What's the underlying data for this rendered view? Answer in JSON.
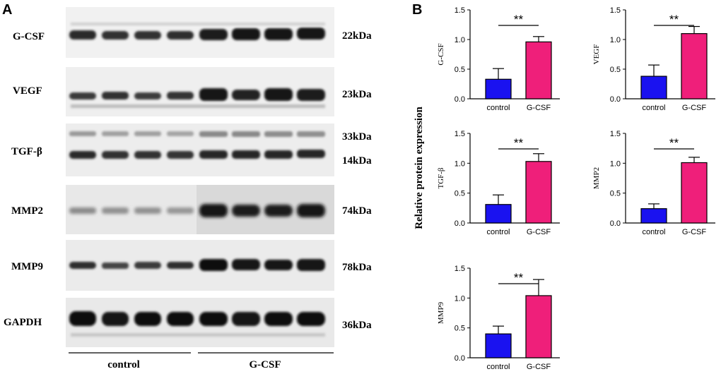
{
  "panel_a": {
    "letter": "A",
    "blots": [
      {
        "label": "G-CSF",
        "kda": [
          "22kDa"
        ]
      },
      {
        "label": "VEGF",
        "kda": [
          "23kDa"
        ]
      },
      {
        "label": "TGF-β",
        "kda": [
          "33kDa",
          "14kDa"
        ]
      },
      {
        "label": "MMP2",
        "kda": [
          "74kDa"
        ]
      },
      {
        "label": "MMP9",
        "kda": [
          "78kDa"
        ]
      },
      {
        "label": "GAPDH",
        "kda": [
          "36kDa"
        ]
      }
    ],
    "groups": [
      "control",
      "G-CSF"
    ]
  },
  "panel_b": {
    "letter": "B",
    "shared_ylabel": "Relative protein expression"
  },
  "colors": {
    "control": "#1a12f0",
    "gcsf": "#ef1f7a"
  },
  "chart_data": [
    {
      "type": "bar",
      "ylabel": "G-CSF",
      "categories": [
        "control",
        "G-CSF"
      ],
      "values": [
        0.33,
        0.96
      ],
      "errors": [
        0.18,
        0.09
      ],
      "ylim": [
        0,
        1.5
      ],
      "yticks": [
        "0.0",
        "0.5",
        "1.0",
        "1.5"
      ],
      "significance": "**"
    },
    {
      "type": "bar",
      "ylabel": "VEGF",
      "categories": [
        "control",
        "G-CSF"
      ],
      "values": [
        0.38,
        1.1
      ],
      "errors": [
        0.19,
        0.12
      ],
      "ylim": [
        0,
        1.5
      ],
      "yticks": [
        "0.0",
        "0.5",
        "1.0",
        "1.5"
      ],
      "significance": "**"
    },
    {
      "type": "bar",
      "ylabel": "TGF-β",
      "categories": [
        "control",
        "G-CSF"
      ],
      "values": [
        0.31,
        1.03
      ],
      "errors": [
        0.16,
        0.13
      ],
      "ylim": [
        0,
        1.5
      ],
      "yticks": [
        "0.0",
        "0.5",
        "1.0",
        "1.5"
      ],
      "significance": "**"
    },
    {
      "type": "bar",
      "ylabel": "MMP2",
      "categories": [
        "control",
        "G-CSF"
      ],
      "values": [
        0.24,
        1.01
      ],
      "errors": [
        0.08,
        0.09
      ],
      "ylim": [
        0,
        1.5
      ],
      "yticks": [
        "0.0",
        "0.5",
        "1.0",
        "1.5"
      ],
      "significance": "**"
    },
    {
      "type": "bar",
      "ylabel": "MMP9",
      "categories": [
        "control",
        "G-CSF"
      ],
      "values": [
        0.4,
        1.04
      ],
      "errors": [
        0.13,
        0.27
      ],
      "ylim": [
        0,
        1.5
      ],
      "yticks": [
        "0.0",
        "0.5",
        "1.0",
        "1.5"
      ],
      "significance": "**"
    }
  ]
}
